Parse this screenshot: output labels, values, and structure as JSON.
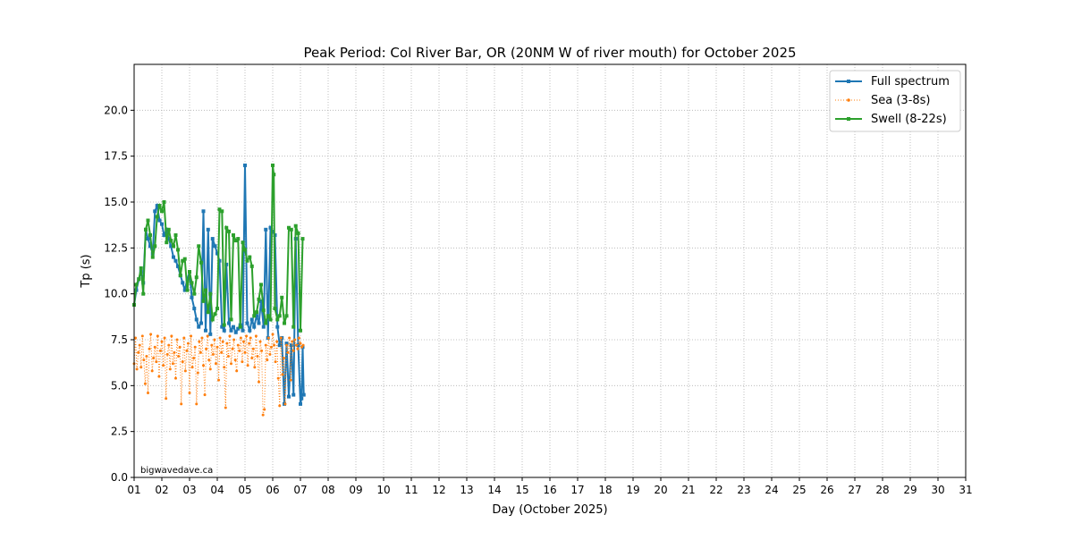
{
  "chart_data": {
    "type": "line",
    "title": "Peak Period: Col River Bar, OR (20NM W of river mouth) for October 2025",
    "xlabel": "Day (October 2025)",
    "ylabel": "Tp (s)",
    "xlim": [
      1,
      31
    ],
    "ylim": [
      0,
      22.5
    ],
    "x_ticks": [
      "01",
      "02",
      "03",
      "04",
      "05",
      "06",
      "07",
      "08",
      "09",
      "10",
      "11",
      "12",
      "13",
      "14",
      "15",
      "16",
      "17",
      "18",
      "19",
      "20",
      "21",
      "22",
      "23",
      "24",
      "25",
      "26",
      "27",
      "28",
      "29",
      "30",
      "31"
    ],
    "y_ticks": [
      "0.0",
      "2.5",
      "5.0",
      "7.5",
      "10.0",
      "12.5",
      "15.0",
      "17.5",
      "20.0"
    ],
    "grid": true,
    "legend_position": "top-right",
    "watermark": "bigwavedave.ca",
    "series": [
      {
        "name": "Full spectrum",
        "color": "#1f77b4",
        "style": "solid",
        "marker": "square",
        "x": [
          1.0,
          1.08,
          1.17,
          1.25,
          1.33,
          1.42,
          1.5,
          1.58,
          1.67,
          1.75,
          1.83,
          1.92,
          2.0,
          2.08,
          2.17,
          2.25,
          2.33,
          2.42,
          2.5,
          2.58,
          2.67,
          2.75,
          2.83,
          2.92,
          3.0,
          3.08,
          3.17,
          3.25,
          3.33,
          3.42,
          3.5,
          3.58,
          3.67,
          3.75,
          3.83,
          3.92,
          4.0,
          4.08,
          4.17,
          4.25,
          4.33,
          4.42,
          4.5,
          4.58,
          4.67,
          4.75,
          4.83,
          4.92,
          5.0,
          5.08,
          5.17,
          5.25,
          5.33,
          5.42,
          5.5,
          5.58,
          5.67,
          5.75,
          5.83,
          5.92,
          6.0,
          6.08,
          6.17,
          6.25,
          6.33,
          6.42,
          6.5,
          6.58,
          6.67,
          6.75,
          6.83,
          6.92,
          7.0,
          7.04,
          7.08,
          7.12
        ],
        "y": [
          9.4,
          10.2,
          10.8,
          11.2,
          10.6,
          13.5,
          13.0,
          12.6,
          12.2,
          14.5,
          14.8,
          14.0,
          13.8,
          13.2,
          13.5,
          13.0,
          12.6,
          12.0,
          11.8,
          11.5,
          11.0,
          10.6,
          10.2,
          10.8,
          11.2,
          9.8,
          9.2,
          8.6,
          8.2,
          8.4,
          14.5,
          8.0,
          13.5,
          7.8,
          13.0,
          12.6,
          12.2,
          11.8,
          8.2,
          8.0,
          11.6,
          8.4,
          8.0,
          8.2,
          7.9,
          8.1,
          8.3,
          8.0,
          17.0,
          8.4,
          8.0,
          8.6,
          8.2,
          8.8,
          8.4,
          9.6,
          8.2,
          13.5,
          7.6,
          13.6,
          13.4,
          13.2,
          8.2,
          7.2,
          7.6,
          4.0,
          7.3,
          4.4,
          7.2,
          4.5,
          13.0,
          7.2,
          4.0,
          4.3,
          7.1,
          4.5
        ]
      },
      {
        "name": "Sea (3-8s)",
        "color": "#ff7f0e",
        "style": "dotted",
        "marker": "dot",
        "x": [
          1.0,
          1.05,
          1.1,
          1.15,
          1.2,
          1.25,
          1.3,
          1.35,
          1.4,
          1.45,
          1.5,
          1.55,
          1.6,
          1.65,
          1.7,
          1.75,
          1.8,
          1.85,
          1.9,
          1.95,
          2.0,
          2.05,
          2.1,
          2.15,
          2.2,
          2.25,
          2.3,
          2.35,
          2.4,
          2.45,
          2.5,
          2.55,
          2.6,
          2.65,
          2.7,
          2.75,
          2.8,
          2.85,
          2.9,
          2.95,
          3.0,
          3.05,
          3.1,
          3.15,
          3.2,
          3.25,
          3.3,
          3.35,
          3.4,
          3.45,
          3.5,
          3.55,
          3.6,
          3.65,
          3.7,
          3.75,
          3.8,
          3.85,
          3.9,
          3.95,
          4.0,
          4.05,
          4.1,
          4.15,
          4.2,
          4.25,
          4.3,
          4.35,
          4.4,
          4.45,
          4.5,
          4.55,
          4.6,
          4.65,
          4.7,
          4.75,
          4.8,
          4.85,
          4.9,
          4.95,
          5.0,
          5.05,
          5.1,
          5.15,
          5.2,
          5.25,
          5.3,
          5.35,
          5.4,
          5.45,
          5.5,
          5.55,
          5.6,
          5.65,
          5.7,
          5.75,
          5.8,
          5.85,
          5.9,
          5.95,
          6.0,
          6.05,
          6.1,
          6.15,
          6.2,
          6.25,
          6.3,
          6.35,
          6.4,
          6.45,
          6.5,
          6.55,
          6.6,
          6.65,
          6.7,
          6.75,
          6.8,
          6.85,
          6.9,
          6.95,
          7.0,
          7.05,
          7.1
        ],
        "y": [
          6.2,
          7.6,
          5.9,
          6.8,
          7.2,
          6.0,
          7.7,
          6.4,
          5.1,
          6.6,
          4.6,
          7.0,
          7.8,
          5.8,
          6.5,
          7.1,
          6.3,
          7.7,
          5.5,
          6.9,
          7.4,
          6.1,
          7.6,
          4.3,
          6.7,
          7.2,
          5.9,
          7.7,
          6.2,
          6.8,
          5.4,
          7.5,
          6.6,
          7.1,
          4.0,
          6.3,
          7.6,
          5.8,
          6.9,
          7.3,
          4.6,
          7.7,
          6.0,
          6.5,
          7.1,
          4.0,
          5.7,
          7.4,
          6.8,
          7.6,
          6.1,
          4.5,
          7.0,
          7.7,
          6.4,
          5.9,
          7.2,
          6.7,
          7.5,
          6.2,
          7.1,
          5.3,
          7.6,
          6.8,
          7.4,
          6.0,
          3.8,
          7.3,
          6.6,
          7.7,
          6.2,
          7.0,
          7.5,
          6.4,
          5.8,
          7.2,
          6.9,
          7.6,
          6.3,
          7.4,
          6.8,
          7.7,
          6.1,
          7.3,
          7.6,
          6.5,
          7.0,
          6.0,
          7.7,
          6.6,
          5.2,
          7.4,
          6.9,
          3.4,
          3.7,
          7.2,
          6.4,
          7.6,
          6.7,
          7.1,
          7.8,
          7.2,
          6.3,
          7.4,
          5.4,
          3.9,
          7.6,
          5.6,
          6.5,
          4.0,
          7.2,
          6.8,
          7.6,
          5.3,
          7.4,
          6.9,
          7.5,
          7.2,
          7.0,
          7.6,
          7.3,
          7.1,
          7.2
        ]
      },
      {
        "name": "Swell (8-22s)",
        "color": "#2ca02c",
        "style": "solid",
        "marker": "square",
        "x": [
          1.0,
          1.08,
          1.17,
          1.25,
          1.33,
          1.42,
          1.5,
          1.58,
          1.67,
          1.75,
          1.83,
          1.92,
          2.0,
          2.08,
          2.17,
          2.25,
          2.33,
          2.42,
          2.5,
          2.58,
          2.67,
          2.75,
          2.83,
          2.92,
          3.0,
          3.08,
          3.17,
          3.25,
          3.33,
          3.42,
          3.5,
          3.58,
          3.67,
          3.75,
          3.83,
          3.92,
          4.0,
          4.08,
          4.17,
          4.25,
          4.33,
          4.42,
          4.5,
          4.58,
          4.67,
          4.75,
          4.83,
          4.92,
          5.0,
          5.08,
          5.17,
          5.25,
          5.33,
          5.42,
          5.5,
          5.58,
          5.67,
          5.75,
          5.83,
          5.92,
          6.0,
          6.04,
          6.08,
          6.17,
          6.25,
          6.33,
          6.42,
          6.5,
          6.58,
          6.67,
          6.75,
          6.83,
          6.92,
          7.0,
          7.08
        ],
        "y": [
          9.4,
          10.5,
          10.8,
          11.4,
          10.0,
          13.5,
          14.0,
          13.2,
          12.0,
          12.6,
          14.2,
          14.8,
          14.5,
          15.0,
          12.8,
          13.5,
          12.9,
          12.6,
          13.2,
          12.4,
          11.0,
          11.8,
          11.9,
          10.2,
          11.2,
          10.6,
          10.0,
          10.9,
          12.6,
          11.7,
          9.6,
          10.2,
          9.0,
          10.0,
          8.6,
          8.9,
          9.2,
          14.6,
          14.5,
          8.3,
          13.6,
          13.4,
          8.6,
          13.2,
          12.9,
          13.0,
          8.2,
          12.8,
          12.4,
          11.8,
          12.0,
          11.5,
          8.8,
          9.0,
          9.7,
          10.5,
          9.1,
          8.4,
          8.8,
          8.6,
          17.0,
          16.5,
          9.2,
          8.6,
          8.8,
          9.8,
          8.4,
          8.8,
          13.6,
          13.5,
          8.2,
          13.7,
          13.3,
          8.0,
          13.0
        ]
      }
    ]
  }
}
